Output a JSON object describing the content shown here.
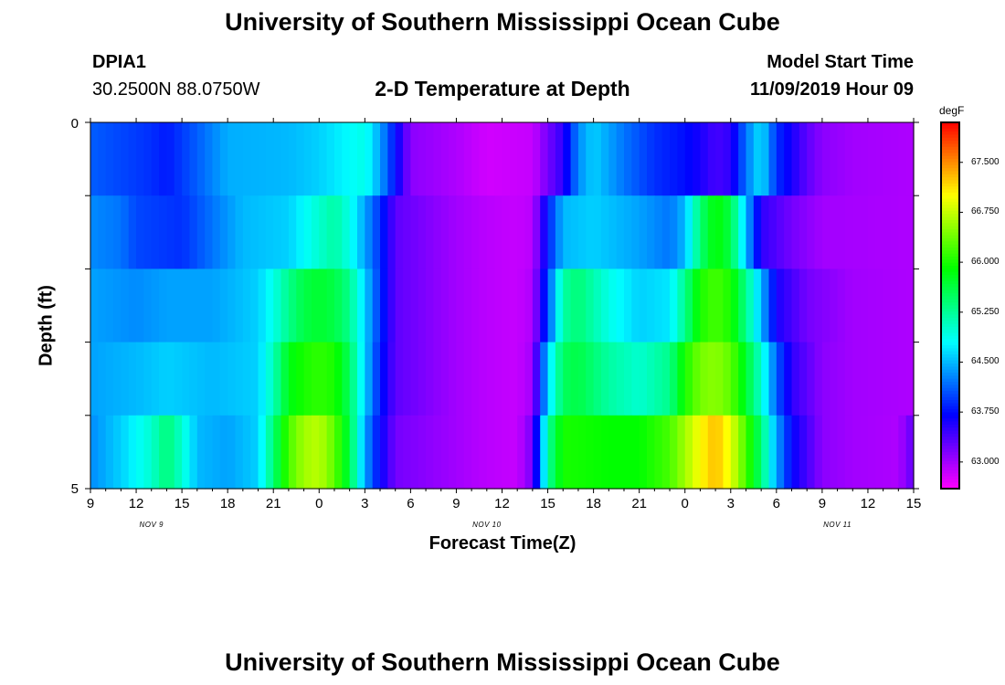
{
  "header": {
    "title": "University of Southern Mississippi Ocean Cube",
    "station_id": "DPIA1",
    "location": "30.2500N 88.0750W",
    "plot_title": "2-D Temperature at Depth",
    "model_start_label": "Model Start Time",
    "model_start_value": "11/09/2019 Hour 09"
  },
  "footer": {
    "title": "University of Southern Mississippi Ocean Cube"
  },
  "chart_data": {
    "type": "heatmap",
    "title": "2-D Temperature at Depth",
    "xlabel": "Forecast Time(Z)",
    "ylabel": "Depth (ft)",
    "ylim": [
      0,
      5
    ],
    "y_tick_labels": [
      "0",
      "5"
    ],
    "x_tick_labels": [
      "9",
      "12",
      "15",
      "18",
      "21",
      "0",
      "3",
      "6",
      "9",
      "12",
      "15",
      "18",
      "21",
      "0",
      "3",
      "6",
      "9",
      "12",
      "15"
    ],
    "date_labels": [
      {
        "label": "NOV 9",
        "hour_offset": 4
      },
      {
        "label": "NOV 10",
        "hour_offset": 26
      },
      {
        "label": "NOV 11",
        "hour_offset": 49
      }
    ],
    "x_start_hour": 9,
    "x_range_hours": [
      0,
      54
    ],
    "hours_per_column": 1,
    "depth_layers": 5,
    "colorbar": {
      "units": "degF",
      "range": [
        62.6,
        68.1
      ],
      "tick_values": [
        63.0,
        63.75,
        64.5,
        65.25,
        66.0,
        66.75,
        67.5
      ],
      "tick_labels": [
        "63.000",
        "63.750",
        "64.500",
        "65.250",
        "66.000",
        "66.750",
        "67.500"
      ]
    },
    "temperature_layers": [
      {
        "depth_ft": "0-1",
        "keyframes": [
          [
            0,
            64.1
          ],
          [
            4,
            63.9
          ],
          [
            5,
            63.8
          ],
          [
            7,
            64.1
          ],
          [
            9,
            64.45
          ],
          [
            13,
            64.5
          ],
          [
            15,
            64.6
          ],
          [
            17,
            64.8
          ],
          [
            18,
            64.9
          ],
          [
            19,
            64.4
          ],
          [
            20,
            63.75
          ],
          [
            21,
            63.1
          ],
          [
            24,
            62.95
          ],
          [
            26,
            62.8
          ],
          [
            29,
            62.85
          ],
          [
            30,
            63.2
          ],
          [
            31,
            63.5
          ],
          [
            32,
            64.3
          ],
          [
            33,
            64.6
          ],
          [
            35,
            64.2
          ],
          [
            37,
            63.9
          ],
          [
            39,
            63.75
          ],
          [
            40,
            63.6
          ],
          [
            41,
            63.4
          ],
          [
            42,
            63.5
          ],
          [
            43,
            64.2
          ],
          [
            44,
            64.7
          ],
          [
            45,
            63.9
          ],
          [
            46,
            63.6
          ],
          [
            47,
            63.3
          ],
          [
            48,
            63.1
          ],
          [
            50,
            63.0
          ],
          [
            54,
            62.95
          ]
        ]
      },
      {
        "depth_ft": "1-2",
        "keyframes": [
          [
            0,
            64.3
          ],
          [
            2,
            64.2
          ],
          [
            3,
            64.0
          ],
          [
            6,
            63.9
          ],
          [
            8,
            64.2
          ],
          [
            10,
            64.5
          ],
          [
            13,
            64.6
          ],
          [
            14,
            64.8
          ],
          [
            15,
            65.0
          ],
          [
            16,
            65.2
          ],
          [
            17,
            64.9
          ],
          [
            18,
            64.4
          ],
          [
            19,
            63.9
          ],
          [
            20,
            63.3
          ],
          [
            24,
            63.0
          ],
          [
            26,
            62.9
          ],
          [
            28,
            62.85
          ],
          [
            29,
            62.9
          ],
          [
            30,
            63.8
          ],
          [
            31,
            64.5
          ],
          [
            33,
            64.6
          ],
          [
            36,
            64.4
          ],
          [
            38,
            64.2
          ],
          [
            39,
            64.5
          ],
          [
            40,
            65.4
          ],
          [
            41,
            65.9
          ],
          [
            42,
            65.6
          ],
          [
            43,
            64.5
          ],
          [
            44,
            63.5
          ],
          [
            46,
            63.2
          ],
          [
            48,
            63.0
          ],
          [
            54,
            62.95
          ]
        ]
      },
      {
        "depth_ft": "2-3",
        "keyframes": [
          [
            0,
            64.4
          ],
          [
            3,
            64.3
          ],
          [
            5,
            64.4
          ],
          [
            8,
            64.4
          ],
          [
            11,
            64.6
          ],
          [
            12,
            64.9
          ],
          [
            13,
            65.3
          ],
          [
            14,
            65.6
          ],
          [
            15,
            65.7
          ],
          [
            16,
            65.6
          ],
          [
            17,
            65.3
          ],
          [
            18,
            64.6
          ],
          [
            19,
            63.9
          ],
          [
            20,
            63.3
          ],
          [
            24,
            63.0
          ],
          [
            26,
            62.9
          ],
          [
            28,
            62.85
          ],
          [
            29,
            62.95
          ],
          [
            30,
            64.0
          ],
          [
            31,
            65.2
          ],
          [
            32,
            65.4
          ],
          [
            34,
            64.9
          ],
          [
            36,
            64.6
          ],
          [
            38,
            64.7
          ],
          [
            39,
            65.3
          ],
          [
            40,
            66.0
          ],
          [
            41,
            66.2
          ],
          [
            42,
            66.0
          ],
          [
            43,
            65.3
          ],
          [
            44,
            64.5
          ],
          [
            45,
            63.6
          ],
          [
            47,
            63.2
          ],
          [
            50,
            63.0
          ],
          [
            54,
            62.95
          ]
        ]
      },
      {
        "depth_ft": "3-4",
        "keyframes": [
          [
            0,
            64.4
          ],
          [
            3,
            64.5
          ],
          [
            5,
            64.6
          ],
          [
            8,
            64.5
          ],
          [
            11,
            64.6
          ],
          [
            12,
            65.1
          ],
          [
            13,
            65.8
          ],
          [
            14,
            66.0
          ],
          [
            15,
            66.1
          ],
          [
            16,
            66.0
          ],
          [
            17,
            65.5
          ],
          [
            18,
            64.6
          ],
          [
            19,
            63.8
          ],
          [
            20,
            63.3
          ],
          [
            24,
            63.0
          ],
          [
            26,
            62.9
          ],
          [
            28,
            62.85
          ],
          [
            29,
            63.0
          ],
          [
            30,
            64.6
          ],
          [
            31,
            65.5
          ],
          [
            32,
            65.6
          ],
          [
            34,
            65.2
          ],
          [
            36,
            65.0
          ],
          [
            38,
            65.3
          ],
          [
            39,
            66.0
          ],
          [
            40,
            66.4
          ],
          [
            41,
            66.5
          ],
          [
            42,
            66.3
          ],
          [
            43,
            65.7
          ],
          [
            44,
            65.0
          ],
          [
            45,
            64.1
          ],
          [
            46,
            63.5
          ],
          [
            48,
            63.1
          ],
          [
            50,
            63.0
          ],
          [
            54,
            62.95
          ]
        ]
      },
      {
        "depth_ft": "4-5",
        "keyframes": [
          [
            0,
            64.3
          ],
          [
            2,
            64.6
          ],
          [
            4,
            65.0
          ],
          [
            5,
            65.4
          ],
          [
            6,
            65.0
          ],
          [
            7,
            64.5
          ],
          [
            9,
            64.4
          ],
          [
            11,
            64.6
          ],
          [
            12,
            65.4
          ],
          [
            13,
            66.2
          ],
          [
            14,
            66.6
          ],
          [
            15,
            66.7
          ],
          [
            16,
            66.3
          ],
          [
            17,
            65.6
          ],
          [
            18,
            64.4
          ],
          [
            19,
            63.7
          ],
          [
            20,
            63.2
          ],
          [
            24,
            63.0
          ],
          [
            26,
            62.9
          ],
          [
            28,
            62.85
          ],
          [
            29,
            63.2
          ],
          [
            30,
            65.2
          ],
          [
            31,
            66.0
          ],
          [
            34,
            65.9
          ],
          [
            36,
            65.9
          ],
          [
            38,
            66.2
          ],
          [
            39,
            66.6
          ],
          [
            40,
            67.0
          ],
          [
            41,
            67.3
          ],
          [
            42,
            66.9
          ],
          [
            43,
            66.2
          ],
          [
            44,
            65.4
          ],
          [
            45,
            64.4
          ],
          [
            46,
            63.7
          ],
          [
            48,
            63.1
          ],
          [
            50,
            63.0
          ],
          [
            53,
            62.95
          ],
          [
            54,
            63.3
          ]
        ]
      }
    ]
  }
}
